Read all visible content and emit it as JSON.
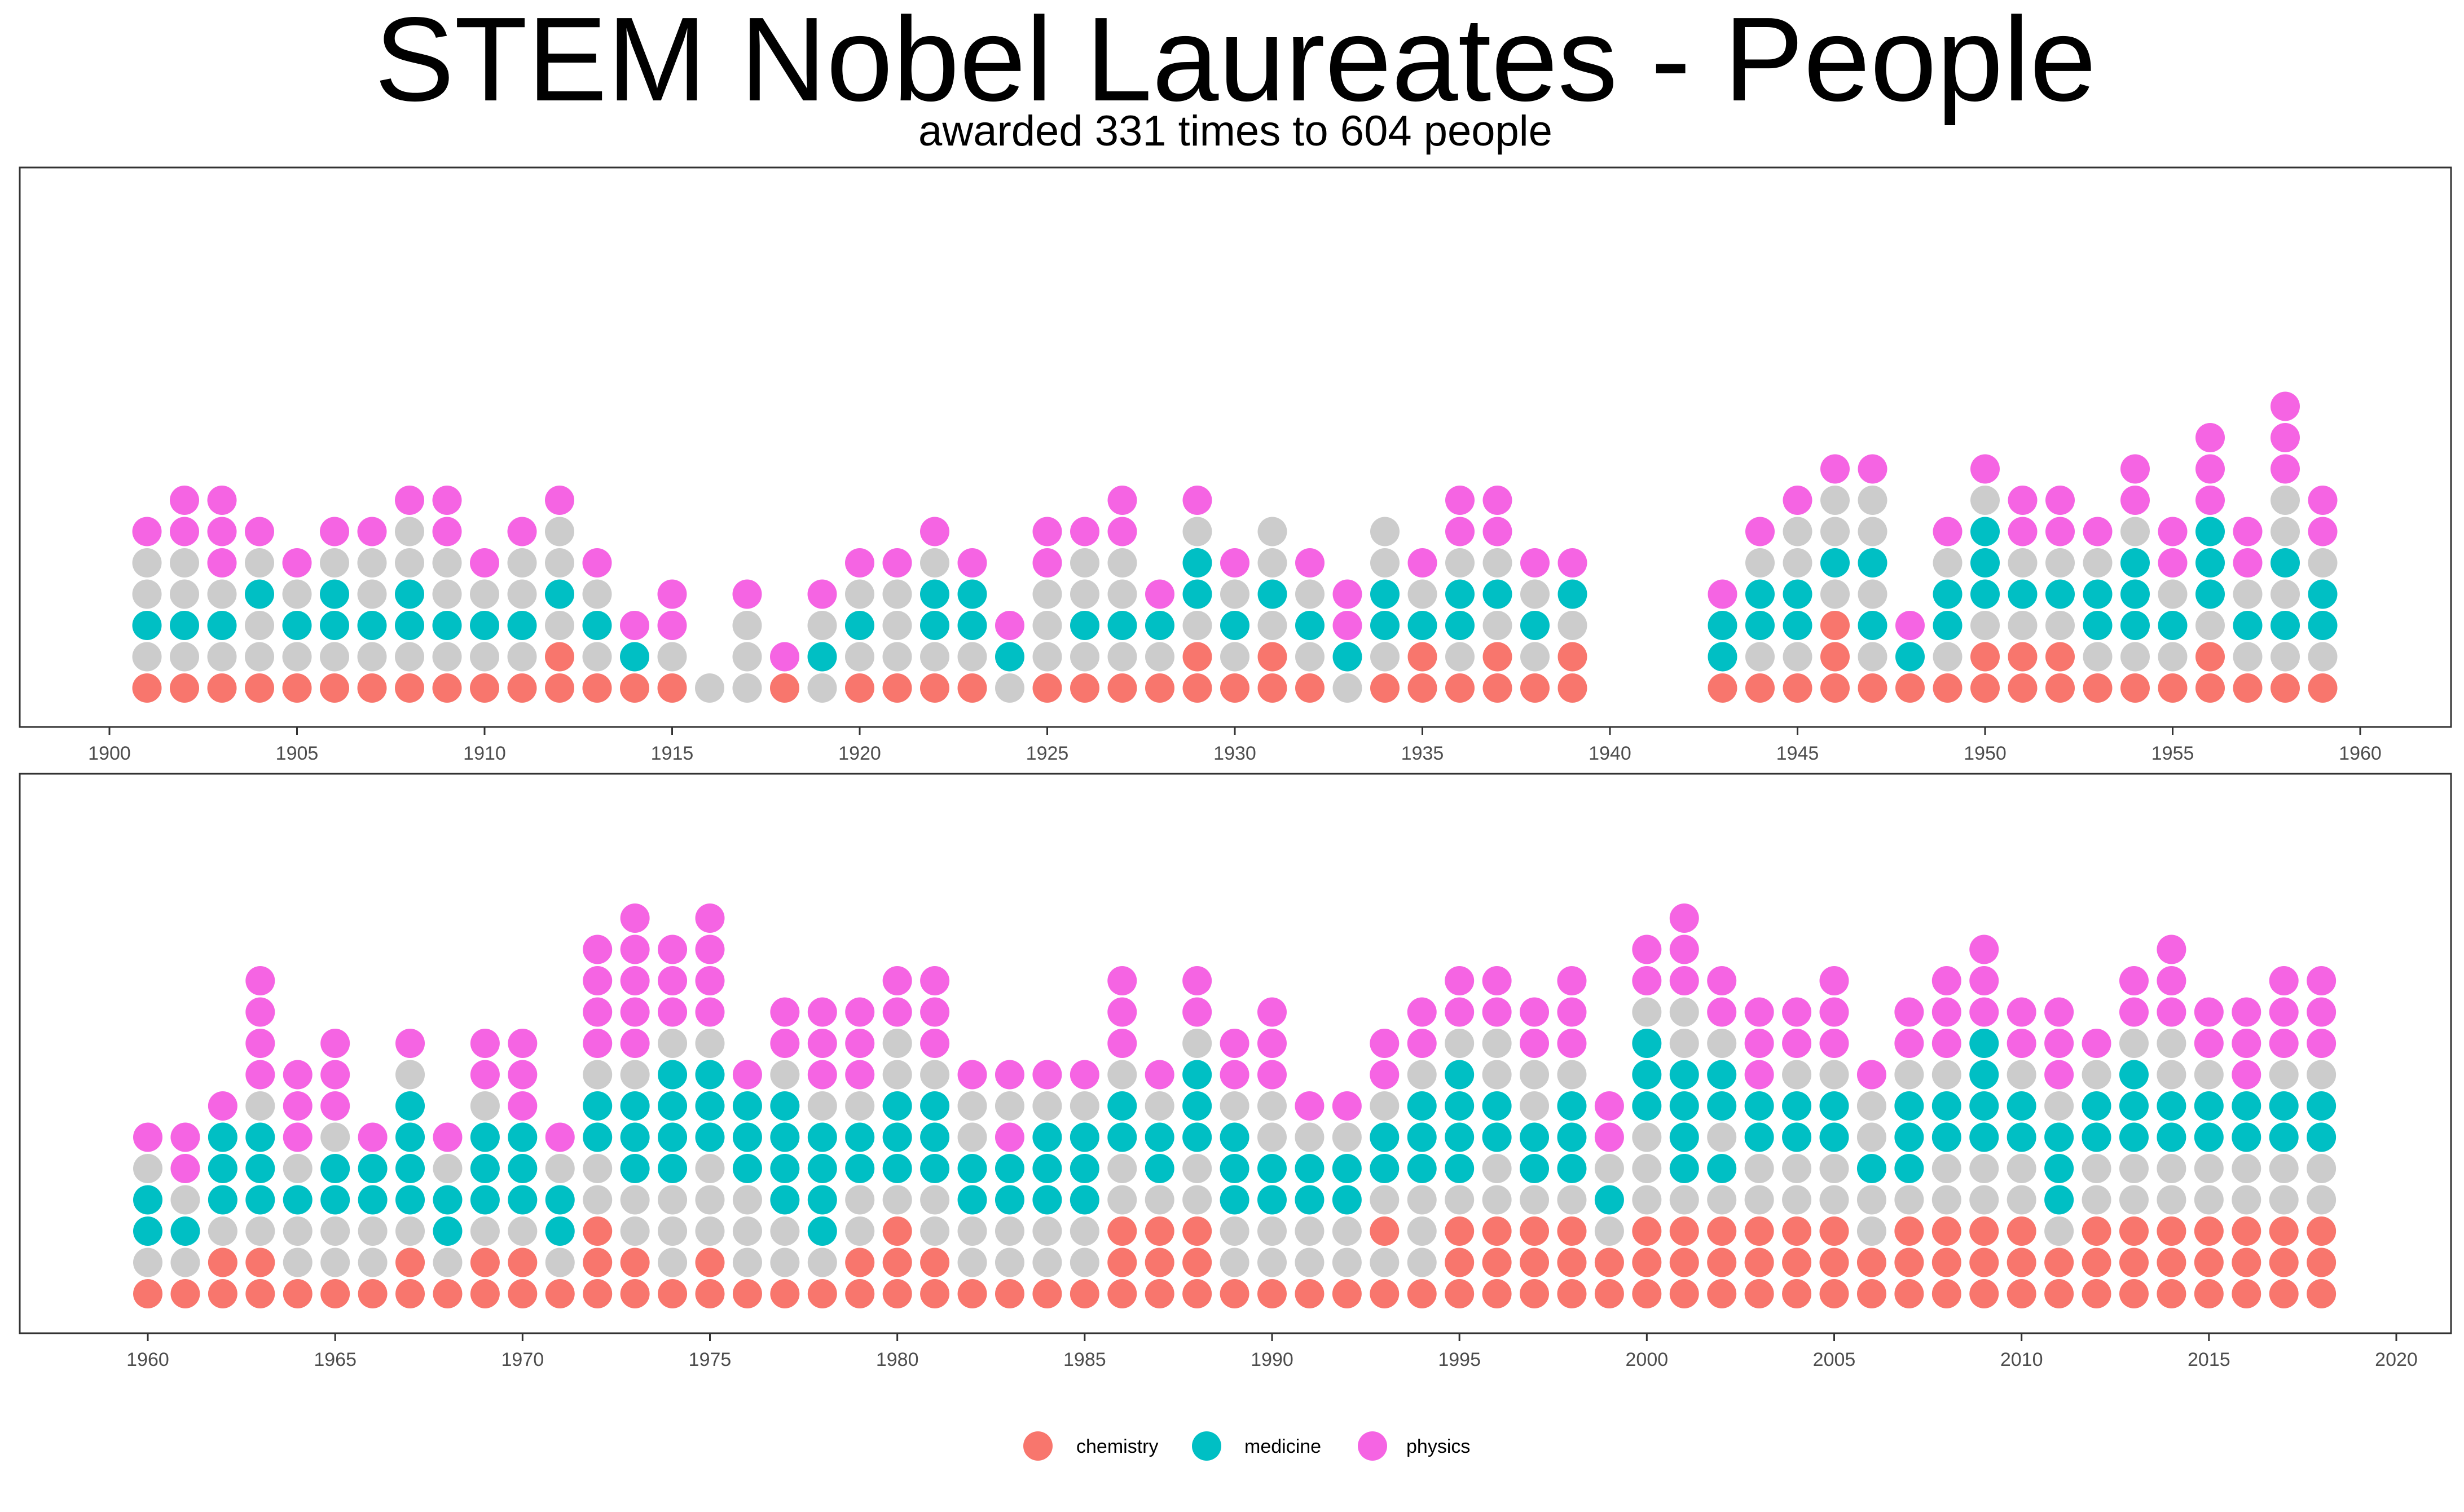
{
  "title": "STEM Nobel Laureates - People",
  "subtitle": "awarded 331 times to 604 people",
  "colors": {
    "chemistry": "#F8766D",
    "medicine": "#00BFC4",
    "physics": "#F564E3",
    "empty": "#CCCCCC"
  },
  "legend": [
    {
      "key": "chemistry",
      "label": "chemistry"
    },
    {
      "key": "medicine",
      "label": "medicine"
    },
    {
      "key": "physics",
      "label": "physics"
    }
  ],
  "chart_data": [
    {
      "type": "dot",
      "x_ticks": [
        "1900",
        "1905",
        "1910",
        "1915",
        "1920",
        "1925",
        "1930",
        "1935",
        "1940",
        "1945",
        "1950",
        "1955",
        "1960"
      ],
      "xlim": [
        1900,
        1960
      ],
      "legend_position": "bottom",
      "note": "Each column is one year; each dot is one position in the stack, bottom to top. C = chemistry, M = medicine, P = physics, G = grey (uncolored).",
      "columns": [
        {
          "year": 1901,
          "dots": "CGMGGP"
        },
        {
          "year": 1902,
          "dots": "CGMGGPP"
        },
        {
          "year": 1903,
          "dots": "CGMGPPP"
        },
        {
          "year": 1904,
          "dots": "CGGMGP"
        },
        {
          "year": 1905,
          "dots": "CGMGP"
        },
        {
          "year": 1906,
          "dots": "CGMMGP"
        },
        {
          "year": 1907,
          "dots": "CGMGGP"
        },
        {
          "year": 1908,
          "dots": "CGMMGGP"
        },
        {
          "year": 1909,
          "dots": "CGMGGPP"
        },
        {
          "year": 1910,
          "dots": "CGMGP"
        },
        {
          "year": 1911,
          "dots": "CGMGGP"
        },
        {
          "year": 1912,
          "dots": "CCGMGGP"
        },
        {
          "year": 1913,
          "dots": "CGMGP"
        },
        {
          "year": 1914,
          "dots": "CMP"
        },
        {
          "year": 1915,
          "dots": "CGPP"
        },
        {
          "year": 1916,
          "dots": "G"
        },
        {
          "year": 1917,
          "dots": "GGGP"
        },
        {
          "year": 1918,
          "dots": "CP"
        },
        {
          "year": 1919,
          "dots": "GMGP"
        },
        {
          "year": 1920,
          "dots": "CGMGP"
        },
        {
          "year": 1921,
          "dots": "CGGGP"
        },
        {
          "year": 1922,
          "dots": "CGMMGP"
        },
        {
          "year": 1923,
          "dots": "CGMMP"
        },
        {
          "year": 1924,
          "dots": "GMP"
        },
        {
          "year": 1925,
          "dots": "CGGGPP"
        },
        {
          "year": 1926,
          "dots": "CGMGGP"
        },
        {
          "year": 1927,
          "dots": "CGMGGPP"
        },
        {
          "year": 1928,
          "dots": "CGMP"
        },
        {
          "year": 1929,
          "dots": "CCGMMGP"
        },
        {
          "year": 1930,
          "dots": "CGMGP"
        },
        {
          "year": 1931,
          "dots": "CCGMGG"
        },
        {
          "year": 1932,
          "dots": "CGMGP"
        },
        {
          "year": 1933,
          "dots": "GMPP"
        },
        {
          "year": 1934,
          "dots": "CGMMGG"
        },
        {
          "year": 1935,
          "dots": "CCMGP"
        },
        {
          "year": 1936,
          "dots": "CGMMGPP"
        },
        {
          "year": 1937,
          "dots": "CCGMGPP"
        },
        {
          "year": 1938,
          "dots": "CGMGP"
        },
        {
          "year": 1939,
          "dots": "CCGMP"
        },
        {
          "year": 1943,
          "dots": "CMMP"
        },
        {
          "year": 1944,
          "dots": "CGMMGP"
        },
        {
          "year": 1945,
          "dots": "CGMMGGP"
        },
        {
          "year": 1946,
          "dots": "CCCGMGGP"
        },
        {
          "year": 1947,
          "dots": "CGMGMGGP"
        },
        {
          "year": 1948,
          "dots": "CMP"
        },
        {
          "year": 1949,
          "dots": "CGMMGP"
        },
        {
          "year": 1950,
          "dots": "CCGMMMGP"
        },
        {
          "year": 1951,
          "dots": "CCGMGPP"
        },
        {
          "year": 1952,
          "dots": "CCGMGPP"
        },
        {
          "year": 1953,
          "dots": "CGMMGP"
        },
        {
          "year": 1954,
          "dots": "CGMMMGPP"
        },
        {
          "year": 1955,
          "dots": "CGMGPP"
        },
        {
          "year": 1956,
          "dots": "CCGMMMPPP"
        },
        {
          "year": 1957,
          "dots": "CGMGPP"
        },
        {
          "year": 1958,
          "dots": "CGMGMGGPPP"
        },
        {
          "year": 1959,
          "dots": "CGMMGPP"
        }
      ]
    },
    {
      "type": "dot",
      "x_ticks": [
        "1960",
        "1965",
        "1970",
        "1975",
        "1980",
        "1985",
        "1990",
        "1995",
        "2000",
        "2005",
        "2010",
        "2015",
        "2020"
      ],
      "xlim": [
        1960,
        2020
      ],
      "legend_position": "bottom",
      "note": "Each column is one year; each dot is one position in the stack, bottom to top. C = chemistry, M = medicine, P = physics, G = grey (uncolored).",
      "columns": [
        {
          "year": 1960,
          "dots": "CGMMGP"
        },
        {
          "year": 1961,
          "dots": "CGMGPP"
        },
        {
          "year": 1962,
          "dots": "CCGMMMP"
        },
        {
          "year": 1963,
          "dots": "CCGMMMGPPPP"
        },
        {
          "year": 1964,
          "dots": "CGGMGPPP"
        },
        {
          "year": 1965,
          "dots": "CGGMMGPPP"
        },
        {
          "year": 1966,
          "dots": "CGGMMP"
        },
        {
          "year": 1967,
          "dots": "CCGMMMMGP"
        },
        {
          "year": 1968,
          "dots": "CGMMGP"
        },
        {
          "year": 1969,
          "dots": "CCGMMMGPP"
        },
        {
          "year": 1970,
          "dots": "CCGMMMPPP"
        },
        {
          "year": 1971,
          "dots": "CGMMGP"
        },
        {
          "year": 1972,
          "dots": "CCCGGMMGPPPP"
        },
        {
          "year": 1973,
          "dots": "CCGGMMMGPPPPP"
        },
        {
          "year": 1974,
          "dots": "CGGGMMMMGPPP"
        },
        {
          "year": 1975,
          "dots": "CCGGGMMMGPPPP"
        },
        {
          "year": 1976,
          "dots": "CGGGMMMP"
        },
        {
          "year": 1977,
          "dots": "CGGMMMMGPP"
        },
        {
          "year": 1978,
          "dots": "CGMMMMGPPP"
        },
        {
          "year": 1979,
          "dots": "CCGGMMGPPP"
        },
        {
          "year": 1980,
          "dots": "CCCGMMMGGPP"
        },
        {
          "year": 1981,
          "dots": "CCGGMMMGPPP"
        },
        {
          "year": 1982,
          "dots": "CGGMMGGP"
        },
        {
          "year": 1983,
          "dots": "CGGMMPGP"
        },
        {
          "year": 1984,
          "dots": "CGGMMMGP"
        },
        {
          "year": 1985,
          "dots": "CGGMMMGP"
        },
        {
          "year": 1986,
          "dots": "CCCGGMMGPPP"
        },
        {
          "year": 1987,
          "dots": "CCCGMMGP"
        },
        {
          "year": 1988,
          "dots": "CCCGGMMMGPP"
        },
        {
          "year": 1989,
          "dots": "CGGMMMGPP"
        },
        {
          "year": 1990,
          "dots": "CGGMMGGPPP"
        },
        {
          "year": 1991,
          "dots": "CGGMMGP"
        },
        {
          "year": 1992,
          "dots": "CGGMMGP"
        },
        {
          "year": 1993,
          "dots": "CGCGMMGPP"
        },
        {
          "year": 1994,
          "dots": "CGGGMMMGPP"
        },
        {
          "year": 1995,
          "dots": "CCCGMMMMGPP"
        },
        {
          "year": 1996,
          "dots": "CCCGGMMGGPP"
        },
        {
          "year": 1997,
          "dots": "CCCGMMGGPP"
        },
        {
          "year": 1998,
          "dots": "CCCGMMMGPPP"
        },
        {
          "year": 1999,
          "dots": "CCGMGPP"
        },
        {
          "year": 2000,
          "dots": "CCCGGGMMMGPP"
        },
        {
          "year": 2001,
          "dots": "CCCGMMMMGGPPP"
        },
        {
          "year": 2002,
          "dots": "CCCGMGMMGPP"
        },
        {
          "year": 2003,
          "dots": "CCCGGMMPPP"
        },
        {
          "year": 2004,
          "dots": "CCCGGMMGPP"
        },
        {
          "year": 2005,
          "dots": "CCCGGMMGPPP"
        },
        {
          "year": 2006,
          "dots": "CCGGMGGP"
        },
        {
          "year": 2007,
          "dots": "CCCGMMMGPP"
        },
        {
          "year": 2008,
          "dots": "CCCGGMMGPPP"
        },
        {
          "year": 2009,
          "dots": "CCCGGMMMMPPP"
        },
        {
          "year": 2010,
          "dots": "CCCGGMMGPP"
        },
        {
          "year": 2011,
          "dots": "CCGMMMGPPP"
        },
        {
          "year": 2012,
          "dots": "CCCGGMMGP"
        },
        {
          "year": 2013,
          "dots": "CCCGGMMMGPP"
        },
        {
          "year": 2014,
          "dots": "CCCGGMMGGPPP"
        },
        {
          "year": 2015,
          "dots": "CCCGGMMGPP"
        },
        {
          "year": 2016,
          "dots": "CCCGGMMPPP"
        },
        {
          "year": 2017,
          "dots": "CCCGGMMGPPP"
        },
        {
          "year": 2018,
          "dots": "CCCGGMMGPPP"
        }
      ]
    }
  ]
}
